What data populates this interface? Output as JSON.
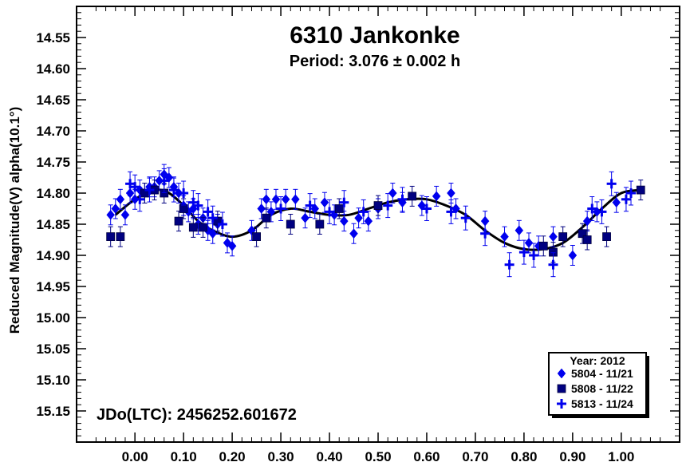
{
  "chart_data": {
    "type": "scatter",
    "title": "6310 Jankonke",
    "subtitle": "Period: 3.076 ± 0.002 h",
    "xlabel": "",
    "ylabel": "Reduced Magnitude(V) alpha(10.1°)",
    "annotation": "JDo(LTC): 2456252.601672",
    "xlim": [
      -0.12,
      1.12
    ],
    "ylim": [
      14.5,
      15.2
    ],
    "y_inverted": true,
    "grid": false,
    "legend_placement": "bottom-right",
    "x_ticks": [
      "0.00",
      "0.10",
      "0.20",
      "0.30",
      "0.40",
      "0.50",
      "0.60",
      "0.70",
      "0.80",
      "0.90",
      "1.00"
    ],
    "y_ticks": [
      "14.55",
      "14.60",
      "14.65",
      "14.70",
      "14.75",
      "14.80",
      "14.85",
      "14.90",
      "14.95",
      "15.00",
      "15.05",
      "15.10",
      "15.15"
    ],
    "legend": {
      "title": "Year: 2012",
      "entries": [
        "5804 - 11/21",
        "5808 - 11/22",
        "5813 - 11/24"
      ]
    },
    "fit_curve": {
      "x": [
        -0.04,
        0.0,
        0.04,
        0.07,
        0.1,
        0.13,
        0.16,
        0.2,
        0.24,
        0.28,
        0.32,
        0.36,
        0.4,
        0.44,
        0.48,
        0.52,
        0.56,
        0.6,
        0.64,
        0.68,
        0.72,
        0.76,
        0.8,
        0.84,
        0.88,
        0.92,
        0.96,
        1.0,
        1.04
      ],
      "y": [
        14.835,
        14.81,
        14.795,
        14.8,
        14.82,
        14.845,
        14.86,
        14.87,
        14.86,
        14.835,
        14.825,
        14.83,
        14.835,
        14.835,
        14.825,
        14.815,
        14.81,
        14.81,
        14.82,
        14.835,
        14.86,
        14.88,
        14.89,
        14.89,
        14.88,
        14.855,
        14.825,
        14.8,
        14.795
      ]
    },
    "series": [
      {
        "name": "5804 - 11/21",
        "marker": "diamond",
        "color": "#0000ee",
        "x": [
          -0.05,
          -0.04,
          -0.03,
          -0.02,
          -0.01,
          0.0,
          0.01,
          0.02,
          0.03,
          0.04,
          0.05,
          0.06,
          0.07,
          0.08,
          0.09,
          0.1,
          0.11,
          0.12,
          0.13,
          0.14,
          0.15,
          0.16,
          0.17,
          0.19,
          0.2,
          0.24,
          0.26,
          0.27,
          0.28,
          0.29,
          0.31,
          0.33,
          0.35,
          0.37,
          0.39,
          0.41,
          0.43,
          0.45,
          0.46,
          0.48,
          0.5,
          0.53,
          0.55,
          0.59,
          0.62,
          0.65,
          0.66,
          0.72,
          0.76,
          0.79,
          0.81,
          0.83,
          0.86,
          0.9,
          0.93,
          0.95,
          0.99
        ],
        "y": [
          14.835,
          14.825,
          14.81,
          14.835,
          14.8,
          14.81,
          14.795,
          14.8,
          14.79,
          14.79,
          14.78,
          14.77,
          14.775,
          14.79,
          14.8,
          14.82,
          14.83,
          14.825,
          14.85,
          14.84,
          14.86,
          14.865,
          14.85,
          14.88,
          14.885,
          14.86,
          14.825,
          14.81,
          14.83,
          14.81,
          14.81,
          14.81,
          14.84,
          14.825,
          14.815,
          14.835,
          14.845,
          14.865,
          14.84,
          14.845,
          14.825,
          14.8,
          14.815,
          14.82,
          14.805,
          14.8,
          14.825,
          14.845,
          14.87,
          14.86,
          14.88,
          14.885,
          14.87,
          14.9,
          14.845,
          14.83,
          14.815
        ]
      },
      {
        "name": "5808 - 11/22",
        "marker": "square",
        "color": "#000080",
        "x": [
          -0.05,
          -0.03,
          0.02,
          0.04,
          0.06,
          0.09,
          0.1,
          0.12,
          0.14,
          0.17,
          0.25,
          0.27,
          0.32,
          0.38,
          0.42,
          0.5,
          0.57,
          0.84,
          0.86,
          0.88,
          0.92,
          0.93,
          0.97,
          1.04
        ],
        "y": [
          14.87,
          14.87,
          14.8,
          14.795,
          14.8,
          14.845,
          14.825,
          14.855,
          14.855,
          14.845,
          14.87,
          14.84,
          14.85,
          14.85,
          14.825,
          14.82,
          14.805,
          14.885,
          14.895,
          14.87,
          14.865,
          14.875,
          14.87,
          14.795
        ]
      },
      {
        "name": "5813 - 11/24",
        "marker": "plus",
        "color": "#0000ee",
        "x": [
          -0.01,
          0.0,
          0.01,
          0.03,
          0.06,
          0.08,
          0.1,
          0.12,
          0.13,
          0.15,
          0.16,
          0.18,
          0.3,
          0.36,
          0.4,
          0.43,
          0.47,
          0.52,
          0.55,
          0.6,
          0.65,
          0.68,
          0.72,
          0.77,
          0.8,
          0.82,
          0.86,
          0.94,
          0.96,
          0.98,
          1.01,
          1.02
        ],
        "y": [
          14.785,
          14.79,
          14.81,
          14.795,
          14.78,
          14.795,
          14.8,
          14.815,
          14.82,
          14.83,
          14.84,
          14.85,
          14.825,
          14.82,
          14.83,
          14.815,
          14.83,
          14.82,
          14.81,
          14.825,
          14.83,
          14.84,
          14.865,
          14.915,
          14.895,
          14.9,
          14.915,
          14.825,
          14.83,
          14.785,
          14.81,
          14.8
        ]
      }
    ]
  }
}
